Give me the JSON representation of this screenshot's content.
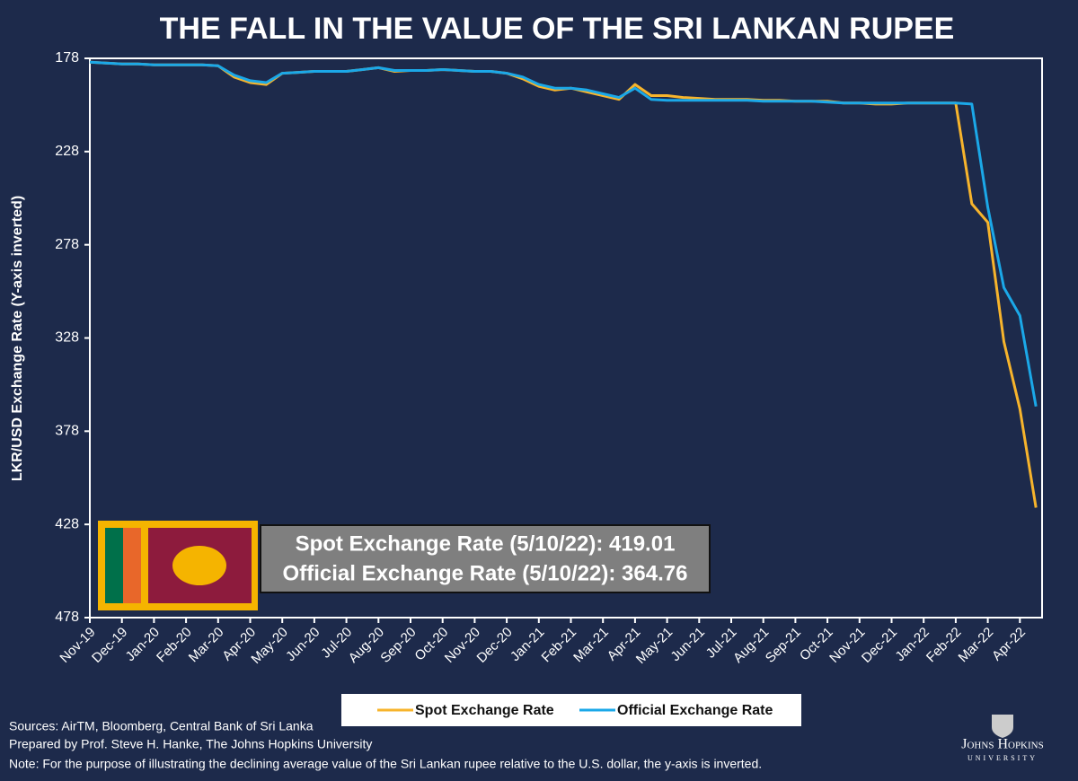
{
  "chart_data": {
    "type": "line",
    "title": "THE FALL IN THE VALUE OF THE SRI LANKAN RUPEE",
    "y_label": "LKR/USD Exchange Rate (Y-axis inverted)",
    "categories": [
      "Nov-19",
      null,
      "Dec-19",
      null,
      "Jan-20",
      null,
      "Feb-20",
      null,
      "Mar-20",
      null,
      "Apr-20",
      null,
      "May-20",
      null,
      "Jun-20",
      null,
      "Jul-20",
      null,
      "Aug-20",
      null,
      "Sep-20",
      null,
      "Oct-20",
      null,
      "Nov-20",
      null,
      "Dec-20",
      null,
      "Jan-21",
      null,
      "Feb-21",
      null,
      "Mar-21",
      null,
      "Apr-21",
      null,
      "May-21",
      null,
      "Jun-21",
      null,
      "Jul-21",
      null,
      "Aug-21",
      null,
      "Sep-21",
      null,
      "Oct-21",
      null,
      "Nov-21",
      null,
      "Dec-21",
      null,
      "Jan-22",
      null,
      "Feb-22",
      null,
      "Mar-22",
      null,
      "Apr-22",
      null
    ],
    "series": [
      {
        "name": "Spot Exchange Rate",
        "color": "#f7b42c",
        "values": [
          180,
          180.5,
          181,
          181,
          181.5,
          181.5,
          181.5,
          181.5,
          182,
          188,
          191,
          192,
          186,
          185.5,
          185,
          185,
          185,
          184,
          183,
          185,
          184.5,
          184.5,
          184,
          184.5,
          185,
          185,
          186,
          189,
          193,
          195,
          194,
          196,
          198,
          200,
          192,
          198,
          198,
          199,
          199.5,
          200,
          200,
          200,
          200.5,
          200.5,
          201,
          201,
          201,
          202,
          202,
          202.5,
          202.5,
          202,
          202,
          202,
          202,
          256,
          266,
          330,
          366,
          419.01
        ]
      },
      {
        "name": "Official Exchange Rate",
        "color": "#1ba8e8",
        "values": [
          180,
          180.5,
          181,
          181,
          181.5,
          181.5,
          181.5,
          181.5,
          182,
          187,
          190,
          191,
          186,
          185.5,
          185,
          185,
          185,
          184,
          183,
          184.5,
          184.5,
          184.5,
          184,
          184.5,
          185,
          185,
          186,
          188,
          192,
          194,
          194,
          195,
          197,
          199,
          194,
          200,
          200.5,
          200.5,
          200.5,
          200.5,
          200.5,
          200.5,
          201,
          201,
          201,
          201,
          201.5,
          202,
          202,
          202,
          202,
          202,
          202,
          202,
          202,
          202.5,
          258,
          301,
          316,
          364.76
        ]
      }
    ],
    "ylim": [
      178,
      478
    ],
    "y_inverted": true,
    "yticks": [
      178,
      228,
      278,
      328,
      378,
      428,
      478
    ],
    "annotations": [
      "Spot Exchange Rate (5/10/22): 419.01",
      "Official Exchange Rate (5/10/22): 364.76"
    ],
    "notes": [
      "Sources: AirTM, Bloomberg, Central Bank of Sri Lanka",
      "Prepared by Prof. Steve H. Hanke, The Johns Hopkins University",
      "Note: For the purpose of illustrating the declining average value of the Sri Lankan rupee relative to the U.S. dollar, the y-axis is inverted."
    ]
  },
  "logo": {
    "name": "Johns Hopkins",
    "sub": "UNIVERSITY"
  }
}
